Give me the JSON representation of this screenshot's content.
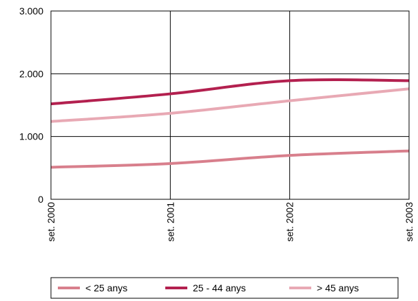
{
  "chart_data": {
    "type": "line",
    "categories": [
      "set. 2000",
      "set. 2001",
      "set. 2002",
      "set. 2003"
    ],
    "ylim": [
      0,
      3000
    ],
    "yticks": [
      {
        "value": 0,
        "label": "0"
      },
      {
        "value": 1000,
        "label": "1.000"
      },
      {
        "value": 2000,
        "label": "2.000"
      },
      {
        "value": 3000,
        "label": "3.000"
      }
    ],
    "grid": true,
    "legend_position": "bottom",
    "series": [
      {
        "name": "< 25 anys",
        "color": "#d87f8c",
        "values": [
          510,
          570,
          700,
          770
        ]
      },
      {
        "name": "25 - 44 anys",
        "color": "#b3204f",
        "values": [
          1520,
          1680,
          1890,
          1890
        ]
      },
      {
        "name": "> 45 anys",
        "color": "#e8a9b4",
        "values": [
          1240,
          1370,
          1570,
          1760
        ]
      }
    ]
  }
}
